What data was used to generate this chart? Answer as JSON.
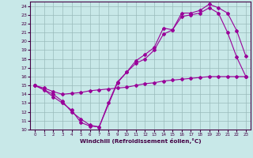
{
  "xlabel": "Windchill (Refroidissement éolien,°C)",
  "xlim": [
    -0.5,
    23.5
  ],
  "ylim": [
    10,
    24.5
  ],
  "xticks": [
    0,
    1,
    2,
    3,
    4,
    5,
    6,
    7,
    8,
    9,
    10,
    11,
    12,
    13,
    14,
    15,
    16,
    17,
    18,
    19,
    20,
    21,
    22,
    23
  ],
  "yticks": [
    10,
    11,
    12,
    13,
    14,
    15,
    16,
    17,
    18,
    19,
    20,
    21,
    22,
    23,
    24
  ],
  "bg_color": "#c8e8e8",
  "line_color": "#990099",
  "grid_color": "#99bbbb",
  "line1_x": [
    0,
    1,
    2,
    3,
    4,
    5,
    6,
    7,
    8,
    9,
    10,
    11,
    12,
    13,
    14,
    15,
    16,
    17,
    18,
    19,
    20,
    21,
    22,
    23
  ],
  "line1_y": [
    15.0,
    14.5,
    13.7,
    13.0,
    12.2,
    10.8,
    10.4,
    10.3,
    13.0,
    15.4,
    16.5,
    17.5,
    18.0,
    19.0,
    20.8,
    21.3,
    22.8,
    23.0,
    23.2,
    23.8,
    23.2,
    21.0,
    18.2,
    16.0
  ],
  "line2_x": [
    0,
    1,
    2,
    3,
    4,
    5,
    6,
    7,
    8,
    9,
    10,
    11,
    12,
    13,
    14,
    15,
    16,
    17,
    18,
    19,
    20,
    21,
    22,
    23
  ],
  "line2_y": [
    15.0,
    14.7,
    14.3,
    14.0,
    14.1,
    14.2,
    14.4,
    14.5,
    14.6,
    14.7,
    14.8,
    15.0,
    15.2,
    15.3,
    15.5,
    15.6,
    15.7,
    15.8,
    15.9,
    16.0,
    16.0,
    16.0,
    16.0,
    16.0
  ],
  "line3_x": [
    0,
    2,
    3,
    4,
    5,
    6,
    7,
    9,
    10,
    11,
    12,
    13,
    14,
    15,
    16,
    17,
    18,
    19,
    20,
    21,
    22,
    23
  ],
  "line3_y": [
    15.0,
    14.0,
    13.2,
    12.0,
    11.2,
    10.5,
    10.3,
    15.3,
    16.5,
    17.8,
    18.5,
    19.3,
    21.5,
    21.3,
    23.2,
    23.2,
    23.5,
    24.2,
    23.8,
    23.2,
    21.2,
    18.3
  ]
}
